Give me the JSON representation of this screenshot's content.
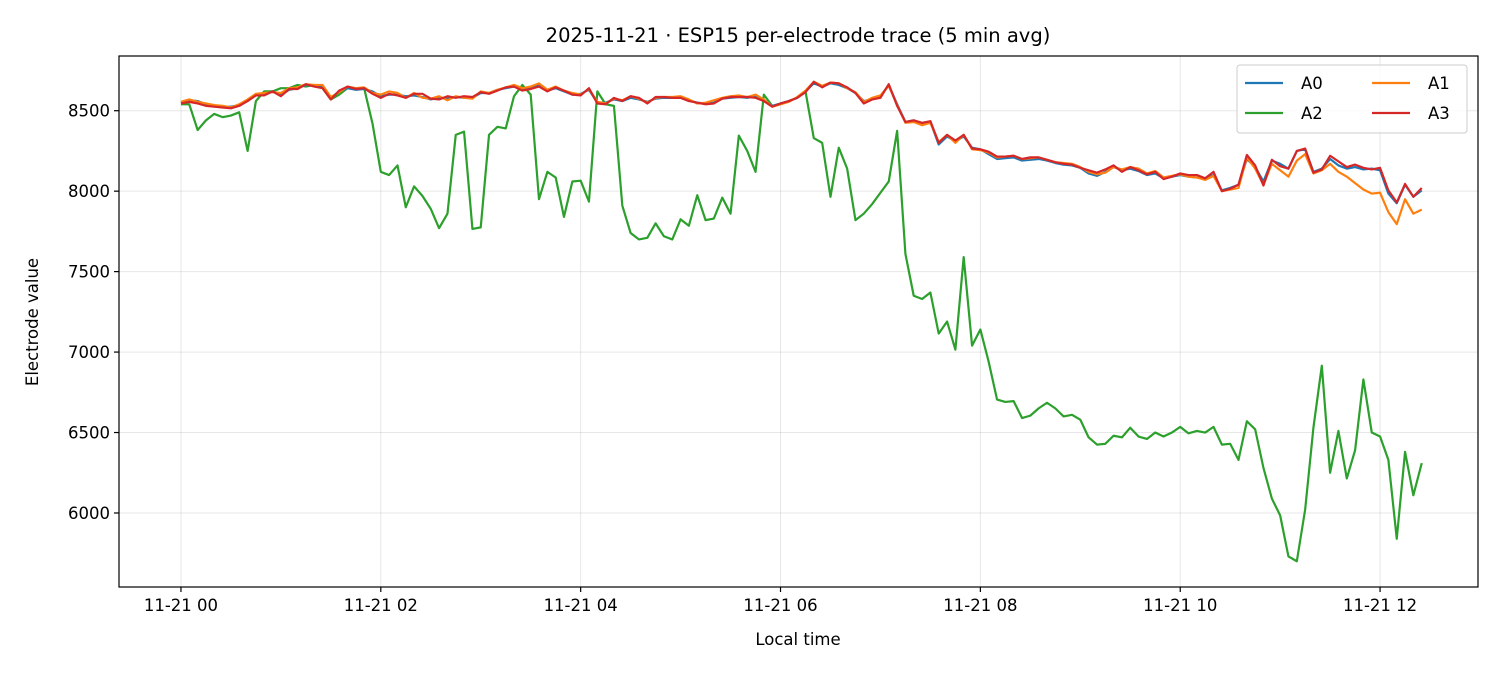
{
  "chart_data": {
    "type": "line",
    "title": "2025-11-21 · ESP15 per-electrode trace (5 min avg)",
    "xlabel": "Local time",
    "ylabel": "Electrode value",
    "xlim_hours": [
      -0.62,
      12.98
    ],
    "ylim": [
      5540,
      8840
    ],
    "x_ticks": [
      {
        "hour": 0,
        "label": "11-21 00"
      },
      {
        "hour": 2,
        "label": "11-21 02"
      },
      {
        "hour": 4,
        "label": "11-21 04"
      },
      {
        "hour": 6,
        "label": "11-21 06"
      },
      {
        "hour": 8,
        "label": "11-21 08"
      },
      {
        "hour": 10,
        "label": "11-21 10"
      },
      {
        "hour": 12,
        "label": "11-21 12"
      }
    ],
    "y_ticks": [
      6000,
      6500,
      7000,
      7500,
      8000,
      8500
    ],
    "grid": true,
    "legend_position": "top-right",
    "x_hours": [
      0.0,
      0.083,
      0.167,
      0.25,
      0.333,
      0.417,
      0.5,
      0.583,
      0.667,
      0.75,
      0.833,
      0.917,
      1.0,
      1.083,
      1.167,
      1.25,
      1.333,
      1.417,
      1.5,
      1.583,
      1.667,
      1.75,
      1.833,
      1.917,
      2.0,
      2.083,
      2.167,
      2.25,
      2.333,
      2.417,
      2.5,
      2.583,
      2.667,
      2.75,
      2.833,
      2.917,
      3.0,
      3.083,
      3.167,
      3.25,
      3.333,
      3.417,
      3.5,
      3.583,
      3.667,
      3.75,
      3.833,
      3.917,
      4.0,
      4.083,
      4.167,
      4.25,
      4.333,
      4.417,
      4.5,
      4.583,
      4.667,
      4.75,
      4.833,
      4.917,
      5.0,
      5.083,
      5.167,
      5.25,
      5.333,
      5.417,
      5.5,
      5.583,
      5.667,
      5.75,
      5.833,
      5.917,
      6.0,
      6.083,
      6.167,
      6.25,
      6.333,
      6.417,
      6.5,
      6.583,
      6.667,
      6.75,
      6.833,
      6.917,
      7.0,
      7.083,
      7.167,
      7.25,
      7.333,
      7.417,
      7.5,
      7.583,
      7.667,
      7.75,
      7.833,
      7.917,
      8.0,
      8.083,
      8.167,
      8.25,
      8.333,
      8.417,
      8.5,
      8.583,
      8.667,
      8.75,
      8.833,
      8.917,
      9.0,
      9.083,
      9.167,
      9.25,
      9.333,
      9.417,
      9.5,
      9.583,
      9.667,
      9.75,
      9.833,
      9.917,
      10.0,
      10.083,
      10.167,
      10.25,
      10.333,
      10.417,
      10.5,
      10.583,
      10.667,
      10.75,
      10.833,
      10.917,
      11.0,
      11.083,
      11.167,
      11.25,
      11.333,
      11.417,
      11.5,
      11.583,
      11.667,
      11.75,
      11.833,
      11.917,
      12.0,
      12.083,
      12.167,
      12.25,
      12.333,
      12.417
    ],
    "series": [
      {
        "name": "A0",
        "color": "#1f77b4",
        "values": [
          8550,
          8565,
          8560,
          8540,
          8530,
          8525,
          8525,
          8535,
          8565,
          8600,
          8605,
          8620,
          8600,
          8630,
          8640,
          8660,
          8655,
          8650,
          8580,
          8620,
          8640,
          8630,
          8635,
          8620,
          8590,
          8600,
          8600,
          8590,
          8595,
          8585,
          8570,
          8580,
          8575,
          8585,
          8580,
          8580,
          8610,
          8610,
          8630,
          8640,
          8650,
          8630,
          8640,
          8660,
          8625,
          8640,
          8620,
          8600,
          8605,
          8630,
          8550,
          8550,
          8570,
          8560,
          8580,
          8570,
          8555,
          8575,
          8580,
          8580,
          8580,
          8565,
          8550,
          8545,
          8550,
          8575,
          8580,
          8585,
          8580,
          8590,
          8560,
          8530,
          8545,
          8560,
          8580,
          8620,
          8670,
          8650,
          8670,
          8660,
          8640,
          8610,
          8560,
          8570,
          8590,
          8660,
          8540,
          8430,
          8440,
          8420,
          8430,
          8290,
          8340,
          8310,
          8340,
          8270,
          8260,
          8230,
          8200,
          8205,
          8210,
          8190,
          8195,
          8200,
          8190,
          8175,
          8165,
          8160,
          8145,
          8110,
          8095,
          8120,
          8150,
          8130,
          8140,
          8125,
          8100,
          8110,
          8080,
          8090,
          8100,
          8090,
          8085,
          8075,
          8100,
          8005,
          8020,
          8040,
          8200,
          8150,
          8060,
          8190,
          8170,
          8140,
          8250,
          8260,
          8120,
          8140,
          8200,
          8160,
          8140,
          8150,
          8135,
          8140,
          8130,
          7985,
          7925,
          8040,
          7965,
          8005
        ]
      },
      {
        "name": "A1",
        "color": "#ff7f0e",
        "values": [
          8555,
          8570,
          8555,
          8545,
          8535,
          8530,
          8520,
          8540,
          8570,
          8605,
          8610,
          8615,
          8610,
          8640,
          8645,
          8665,
          8660,
          8660,
          8585,
          8615,
          8650,
          8640,
          8645,
          8610,
          8600,
          8620,
          8610,
          8580,
          8610,
          8580,
          8575,
          8590,
          8565,
          8590,
          8580,
          8575,
          8620,
          8610,
          8630,
          8645,
          8660,
          8640,
          8650,
          8670,
          8630,
          8650,
          8625,
          8610,
          8600,
          8635,
          8555,
          8545,
          8575,
          8565,
          8590,
          8575,
          8550,
          8580,
          8585,
          8585,
          8590,
          8570,
          8545,
          8550,
          8565,
          8580,
          8590,
          8595,
          8585,
          8600,
          8570,
          8525,
          8540,
          8555,
          8585,
          8625,
          8680,
          8655,
          8675,
          8670,
          8640,
          8615,
          8555,
          8580,
          8595,
          8655,
          8535,
          8425,
          8430,
          8410,
          8425,
          8305,
          8350,
          8300,
          8350,
          8260,
          8255,
          8240,
          8210,
          8215,
          8220,
          8200,
          8205,
          8210,
          8195,
          8180,
          8175,
          8170,
          8150,
          8120,
          8105,
          8115,
          8150,
          8135,
          8150,
          8140,
          8110,
          8125,
          8085,
          8095,
          8105,
          8090,
          8085,
          8070,
          8095,
          8000,
          8010,
          8020,
          8210,
          8140,
          8040,
          8170,
          8130,
          8090,
          8190,
          8230,
          8110,
          8130,
          8170,
          8120,
          8090,
          8050,
          8010,
          7985,
          7990,
          7870,
          7795,
          7950,
          7860,
          7885
        ]
      },
      {
        "name": "A2",
        "color": "#2ca02c",
        "values": [
          8540,
          8540,
          8380,
          8440,
          8480,
          8460,
          8470,
          8490,
          8250,
          8560,
          8620,
          8620,
          8640,
          8640,
          8660,
          8650,
          8660,
          8640,
          8570,
          8600,
          8640,
          8640,
          8640,
          8420,
          8120,
          8100,
          8160,
          7900,
          8030,
          7970,
          7890,
          7770,
          7860,
          8350,
          8370,
          7765,
          7775,
          8350,
          8400,
          8390,
          8590,
          8660,
          8600,
          7950,
          8120,
          8085,
          7840,
          8060,
          8065,
          7935,
          8620,
          8540,
          8530,
          7910,
          7740,
          7700,
          7710,
          7800,
          7720,
          7700,
          7825,
          7785,
          7975,
          7820,
          7830,
          7960,
          7860,
          8345,
          8250,
          8120,
          8600,
          8530,
          8540,
          8560,
          8580,
          8620,
          8330,
          8300,
          7965,
          8270,
          8140,
          7820,
          7860,
          7920,
          7990,
          8060,
          8375,
          7610,
          7350,
          7330,
          7370,
          7115,
          7190,
          7015,
          7590,
          7040,
          7140,
          6940,
          6705,
          6690,
          6695,
          6590,
          6605,
          6650,
          6685,
          6650,
          6600,
          6610,
          6580,
          6470,
          6425,
          6430,
          6480,
          6470,
          6530,
          6475,
          6460,
          6500,
          6475,
          6500,
          6535,
          6495,
          6510,
          6500,
          6535,
          6425,
          6430,
          6330,
          6570,
          6520,
          6280,
          6090,
          5985,
          5730,
          5700,
          6020,
          6530,
          6915,
          6250,
          6510,
          6215,
          6390,
          6830,
          6500,
          6475,
          6330,
          5840,
          6380,
          6110,
          6310
        ]
      },
      {
        "name": "A3",
        "color": "#d62728",
        "values": [
          8545,
          8555,
          8545,
          8530,
          8525,
          8520,
          8515,
          8530,
          8560,
          8595,
          8595,
          8620,
          8590,
          8635,
          8635,
          8665,
          8650,
          8640,
          8570,
          8625,
          8650,
          8635,
          8640,
          8605,
          8580,
          8605,
          8595,
          8580,
          8605,
          8605,
          8575,
          8570,
          8590,
          8580,
          8590,
          8585,
          8615,
          8605,
          8625,
          8645,
          8650,
          8625,
          8635,
          8650,
          8620,
          8645,
          8625,
          8600,
          8595,
          8640,
          8545,
          8540,
          8580,
          8560,
          8590,
          8580,
          8545,
          8585,
          8585,
          8580,
          8580,
          8560,
          8550,
          8540,
          8545,
          8575,
          8585,
          8585,
          8585,
          8580,
          8560,
          8525,
          8545,
          8560,
          8580,
          8615,
          8680,
          8645,
          8675,
          8670,
          8645,
          8610,
          8545,
          8570,
          8580,
          8665,
          8530,
          8430,
          8440,
          8425,
          8435,
          8300,
          8350,
          8315,
          8350,
          8265,
          8260,
          8245,
          8215,
          8215,
          8220,
          8200,
          8210,
          8210,
          8195,
          8180,
          8170,
          8165,
          8145,
          8130,
          8115,
          8135,
          8160,
          8120,
          8150,
          8130,
          8105,
          8120,
          8075,
          8090,
          8110,
          8100,
          8100,
          8080,
          8120,
          8000,
          8015,
          8040,
          8225,
          8160,
          8035,
          8195,
          8155,
          8140,
          8250,
          8265,
          8115,
          8135,
          8220,
          8185,
          8150,
          8165,
          8145,
          8135,
          8145,
          8005,
          7930,
          8045,
          7965,
          8020
        ]
      }
    ]
  }
}
